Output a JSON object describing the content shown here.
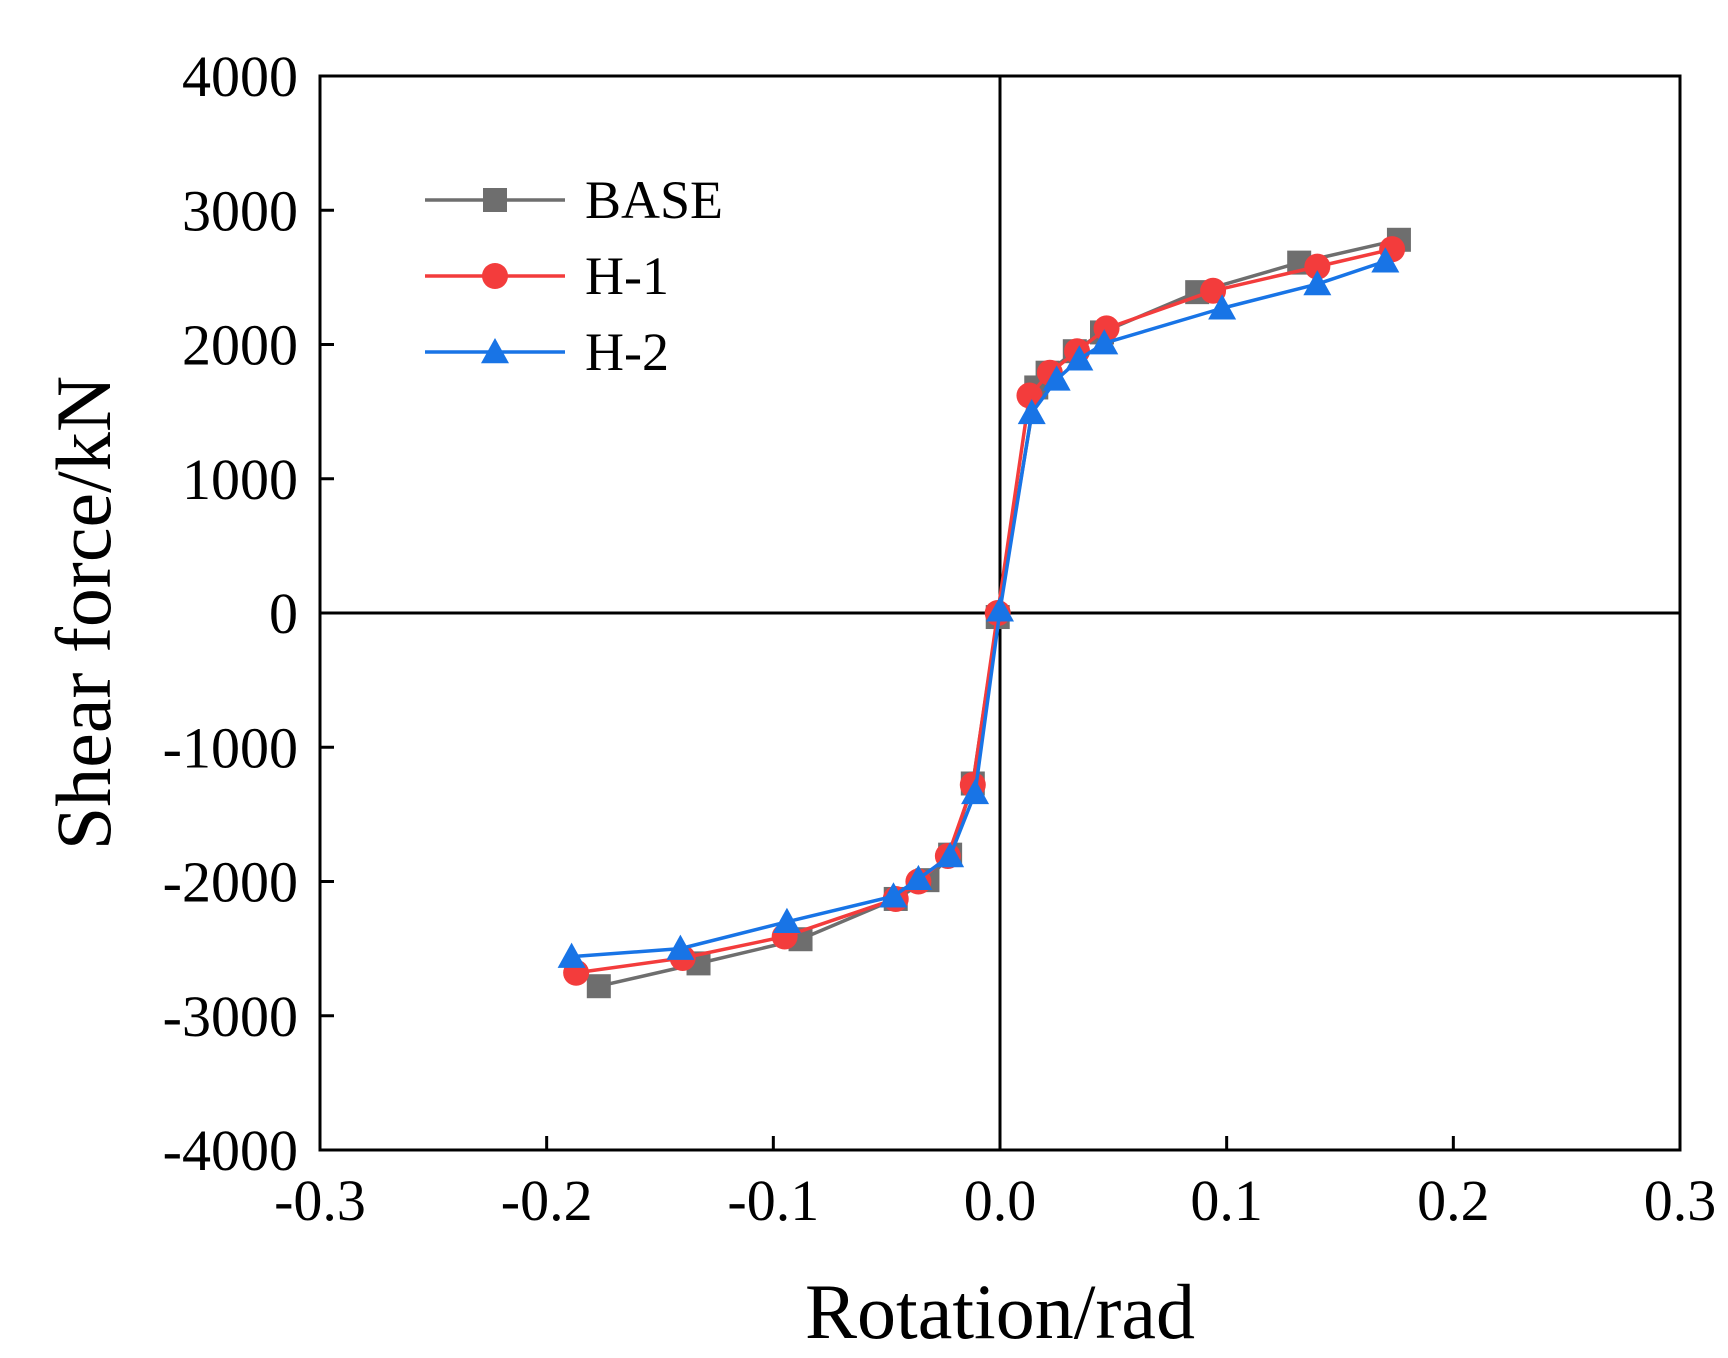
{
  "chart_data": {
    "type": "line",
    "title": "",
    "xlabel": "Rotation/rad",
    "ylabel": "Shear force/kN",
    "xlim": [
      -0.3,
      0.3
    ],
    "ylim": [
      -4000,
      4000
    ],
    "x_ticks": [
      -0.3,
      -0.2,
      -0.1,
      0.0,
      0.1,
      0.2,
      0.3
    ],
    "x_tick_labels": [
      "-0.3",
      "-0.2",
      "-0.1",
      "0.0",
      "0.1",
      "0.2",
      "0.3"
    ],
    "y_ticks": [
      -4000,
      -3000,
      -2000,
      -1000,
      0,
      1000,
      2000,
      3000,
      4000
    ],
    "y_tick_labels": [
      "-4000",
      "-3000",
      "-2000",
      "-1000",
      "0",
      "1000",
      "2000",
      "3000",
      "4000"
    ],
    "grid": false,
    "zero_lines": true,
    "legend_position": "top-left",
    "series": [
      {
        "name": "BASE",
        "color": "#6e6e6e",
        "marker": "square",
        "x": [
          -0.177,
          -0.133,
          -0.088,
          -0.046,
          -0.032,
          -0.022,
          -0.012,
          -0.001,
          0.016,
          0.021,
          0.033,
          0.045,
          0.087,
          0.132,
          0.176
        ],
        "y": [
          -2780,
          -2610,
          -2430,
          -2130,
          -1990,
          -1800,
          -1270,
          -30,
          1680,
          1790,
          1950,
          2090,
          2390,
          2610,
          2780
        ]
      },
      {
        "name": "H-1",
        "color": "#f33c3c",
        "marker": "circle",
        "x": [
          -0.187,
          -0.14,
          -0.095,
          -0.046,
          -0.036,
          -0.023,
          -0.012,
          -0.001,
          0.013,
          0.022,
          0.034,
          0.047,
          0.094,
          0.14,
          0.173
        ],
        "y": [
          -2680,
          -2570,
          -2410,
          -2130,
          -2000,
          -1810,
          -1280,
          0,
          1620,
          1790,
          1950,
          2120,
          2400,
          2580,
          2710
        ]
      },
      {
        "name": "H-2",
        "color": "#1874e6",
        "marker": "triangle",
        "x": [
          -0.189,
          -0.141,
          -0.094,
          -0.047,
          -0.036,
          -0.022,
          -0.011,
          0.0,
          0.014,
          0.025,
          0.035,
          0.046,
          0.098,
          0.14,
          0.17
        ],
        "y": [
          -2560,
          -2500,
          -2300,
          -2110,
          -1980,
          -1810,
          -1340,
          20,
          1490,
          1740,
          1890,
          2010,
          2270,
          2450,
          2620
        ]
      }
    ]
  }
}
